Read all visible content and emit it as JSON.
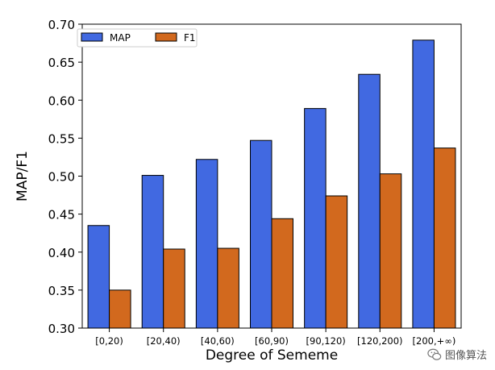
{
  "chart_data": {
    "type": "bar",
    "title": "",
    "xlabel": "Degree of Sememe",
    "ylabel": "MAP/F1",
    "categories": [
      "[0,20)",
      "[20,40)",
      "[40,60)",
      "[60,90)",
      "[90,120)",
      "[120,200)",
      "[200,+∞)"
    ],
    "series": [
      {
        "name": "MAP",
        "color": "#4169e1",
        "values": [
          0.435,
          0.501,
          0.522,
          0.547,
          0.589,
          0.634,
          0.679
        ]
      },
      {
        "name": "F1",
        "color": "#d2691e",
        "values": [
          0.35,
          0.404,
          0.405,
          0.444,
          0.474,
          0.503,
          0.537
        ]
      }
    ],
    "ylim": [
      0.3,
      0.7
    ],
    "yticks": [
      "0.30",
      "0.35",
      "0.40",
      "0.45",
      "0.50",
      "0.55",
      "0.60",
      "0.65",
      "0.70"
    ],
    "grid": false,
    "legend_position": "top-left"
  },
  "watermark": {
    "text": "图像算法"
  }
}
